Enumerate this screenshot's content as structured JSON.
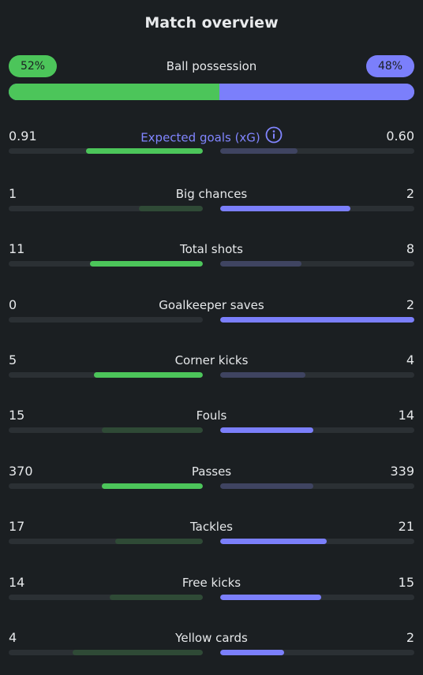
{
  "title": "Match overview",
  "possession": {
    "label": "Ball possession",
    "home_label": "52%",
    "away_label": "48%",
    "home_share": 0.52,
    "away_share": 0.48,
    "home_color": "#4cc55a",
    "away_color": "#7b7ffb"
  },
  "stats": [
    {
      "label": "Expected goals (xG)",
      "home": "0.91",
      "away": "0.60",
      "home_fraction": 0.6,
      "away_fraction": 0.4,
      "leader": "home",
      "has_info": true,
      "icon": "info-icon"
    },
    {
      "label": "Big chances",
      "home": "1",
      "away": "2",
      "home_fraction": 0.33,
      "away_fraction": 0.67,
      "leader": "away"
    },
    {
      "label": "Total shots",
      "home": "11",
      "away": "8",
      "home_fraction": 0.58,
      "away_fraction": 0.42,
      "leader": "home"
    },
    {
      "label": "Goalkeeper saves",
      "home": "0",
      "away": "2",
      "home_fraction": 0.0,
      "away_fraction": 1.0,
      "leader": "away"
    },
    {
      "label": "Corner kicks",
      "home": "5",
      "away": "4",
      "home_fraction": 0.56,
      "away_fraction": 0.44,
      "leader": "home"
    },
    {
      "label": "Fouls",
      "home": "15",
      "away": "14",
      "home_fraction": 0.52,
      "away_fraction": 0.48,
      "leader": "away"
    },
    {
      "label": "Passes",
      "home": "370",
      "away": "339",
      "home_fraction": 0.52,
      "away_fraction": 0.48,
      "leader": "home"
    },
    {
      "label": "Tackles",
      "home": "17",
      "away": "21",
      "home_fraction": 0.45,
      "away_fraction": 0.55,
      "leader": "away"
    },
    {
      "label": "Free kicks",
      "home": "14",
      "away": "15",
      "home_fraction": 0.48,
      "away_fraction": 0.52,
      "leader": "away"
    },
    {
      "label": "Yellow cards",
      "home": "4",
      "away": "2",
      "home_fraction": 0.67,
      "away_fraction": 0.33,
      "leader": "away"
    }
  ]
}
